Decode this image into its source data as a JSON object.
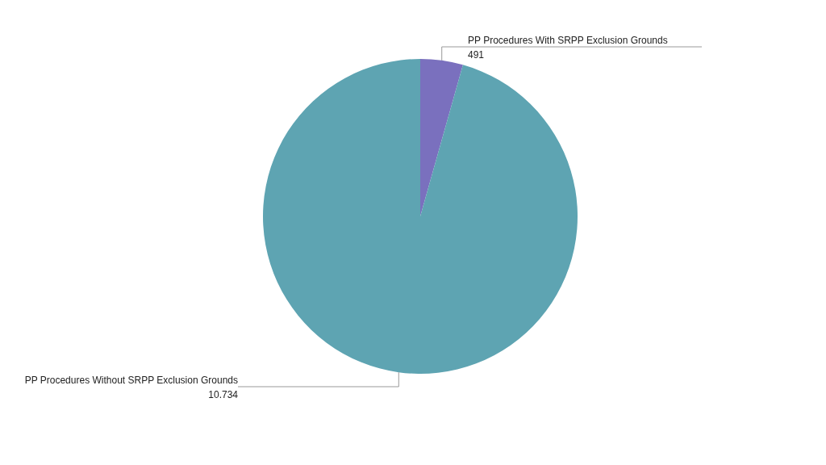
{
  "chart_data": {
    "type": "pie",
    "categories": [
      "PP Procedures With SRPP Exclusion Grounds",
      "PP Procedures Without SRPP Exclusion Grounds"
    ],
    "values": [
      491,
      10734
    ],
    "value_labels": [
      "491",
      "10.734"
    ],
    "colors": [
      "#7a70be",
      "#5ea4b2"
    ]
  }
}
